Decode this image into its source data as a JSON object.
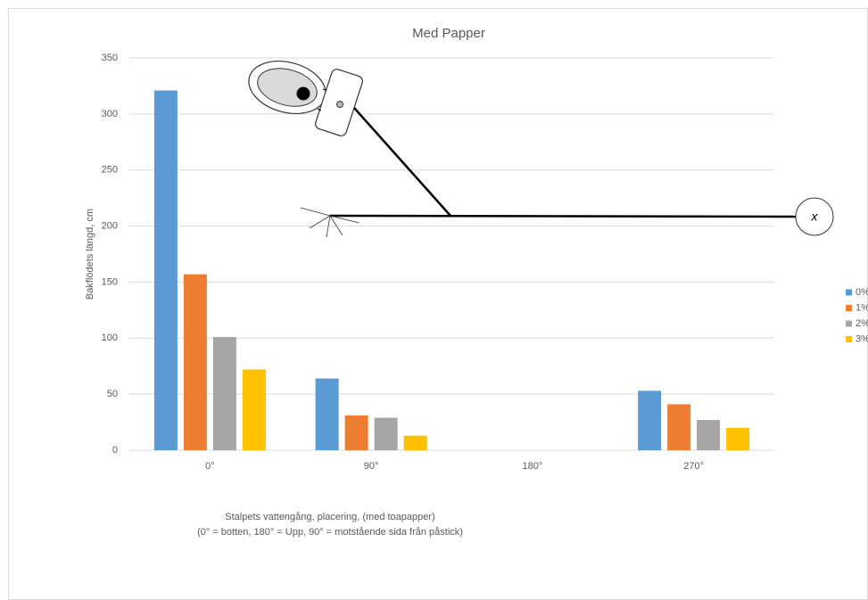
{
  "chart_data": {
    "type": "bar",
    "title": "Med Papper",
    "x_label": [
      "Stalpets vattengång, placering, (med toapapper)",
      "(0° = botten, 180° = Upp, 90° = motstående sida från påstick)"
    ],
    "y_label": "Bakflödets längd, cm",
    "categories": [
      "0°",
      "90°",
      "180°",
      "270°"
    ],
    "series": [
      {
        "name": "0%",
        "color": "#5b9bd5",
        "values": [
          321,
          64,
          null,
          53
        ]
      },
      {
        "name": "1%",
        "color": "#ed7d31",
        "values": [
          157,
          31,
          null,
          41
        ]
      },
      {
        "name": "2%",
        "color": "#a5a5a5",
        "values": [
          101,
          29,
          null,
          27
        ]
      },
      {
        "name": "3%",
        "color": "#ffc000",
        "values": [
          72,
          13,
          null,
          20
        ]
      }
    ],
    "ylim": [
      0,
      350
    ],
    "yticks": [
      0,
      50,
      100,
      150,
      200,
      250,
      300,
      350
    ],
    "grid": true,
    "legend": "right",
    "annotation": "x"
  }
}
